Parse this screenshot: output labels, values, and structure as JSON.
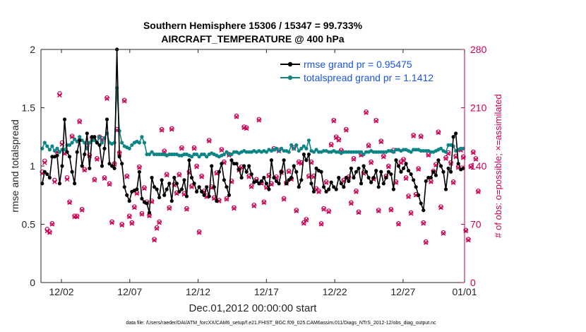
{
  "chart_data": {
    "type": "line",
    "title_line1": "Southern Hemisphere 15306 / 15347 = 99.733%",
    "title_line2": "AIRCRAFT_TEMPERATURE @ 400 hPa",
    "xlabel": "Dec.01,2012 00:00:00 start",
    "ylabel_left": "rmse and totalspread",
    "ylabel_right": "# of obs: o=possible; ×=assimilated",
    "footnote": "data file: /Users/raeder/DAI/ATM_forcXX/CAM6_setup/f.e21.FHIST_BGC.f09_025.CAM6assim.011/Diags_NTrS_2012-12/obs_diag_output.nc",
    "x_range": [
      0.5,
      31.5
    ],
    "x_ticks": [
      {
        "value": 2,
        "label": "12/02"
      },
      {
        "value": 7,
        "label": "12/07"
      },
      {
        "value": 12,
        "label": "12/12"
      },
      {
        "value": 17,
        "label": "12/17"
      },
      {
        "value": 22,
        "label": "12/22"
      },
      {
        "value": 27,
        "label": "12/27"
      },
      {
        "value": 32,
        "label": "01/01"
      }
    ],
    "y_left_range": [
      0,
      2
    ],
    "y_left_ticks": [
      "0",
      "0.5",
      "1",
      "1.5",
      "2"
    ],
    "y_right_range": [
      0,
      280
    ],
    "y_right_ticks": [
      "0",
      "70",
      "140",
      "210",
      "280"
    ],
    "colors": {
      "rmse": "#000000",
      "spread": "#0e8585",
      "obs": "#cc0055",
      "legend_text": "#1a55e0"
    },
    "legend": [
      {
        "label": "rmse grand pr = 0.95475",
        "series": "rmse"
      },
      {
        "label": "totalspread grand pr = 1.1412",
        "series": "spread"
      }
    ],
    "series": [
      {
        "name": "rmse",
        "values": [
          0.85,
          0.95,
          0.93,
          0.9,
          1.08,
          1.08,
          1.09,
          0.85,
          1.0,
          1.4,
          1.12,
          1.08,
          0.95,
          0.85,
          1.12,
          1.22,
          1.0,
          1.1,
          1.28,
          0.98,
          1.25,
          1.25,
          1.2,
          1.18,
          1.0,
          1.15,
          1.4,
          1.02,
          1.0,
          0.98,
          2.0,
          1.08,
          1.02,
          0.82,
          0.75,
          0.7,
          0.78,
          0.79,
          0.8,
          0.95,
          0.72,
          0.69,
          0.68,
          0.6,
          0.9,
          0.82,
          0.8,
          0.73,
          0.88,
          0.75,
          0.8,
          0.85,
          0.7,
          0.9,
          0.85,
          0.78,
          0.8,
          0.88,
          0.74,
          1.05,
          0.9,
          0.85,
          0.78,
          0.82,
          0.78,
          0.75,
          0.82,
          0.74,
          1.0,
          0.82,
          0.7,
          0.95,
          1.02,
          0.88,
          0.82,
          0.75,
          1.05,
          1.02,
          1.02,
          0.97,
          0.9,
          1.0,
          0.95,
          1.0,
          0.93,
          0.86,
          0.87,
          0.85,
          0.87,
          0.9,
          0.85,
          0.8,
          1.05,
          0.9,
          0.87,
          0.85,
          0.95,
          1.05,
          0.85,
          0.88,
          0.9,
          1.0,
          0.95,
          0.82,
          0.88,
          1.1,
          1.05,
          1.1,
          0.85,
          0.78,
          0.98,
          0.96,
          0.95,
          0.82,
          0.78,
          0.8,
          0.86,
          0.82,
          0.8,
          0.9,
          0.85,
          0.82,
          0.9,
          0.87,
          0.98,
          0.9,
          0.95,
          0.98,
          0.85,
          1.0,
          0.95,
          0.9,
          0.86,
          0.9,
          0.96,
          0.82,
          0.95,
          0.85,
          0.9,
          0.95,
          0.93,
          0.8,
          1.05,
          1.0,
          0.95,
          0.98,
          1.02,
          0.96,
          0.93,
          0.88,
          0.82,
          0.75,
          0.68,
          0.62,
          0.87,
          0.9,
          0.9,
          0.95,
          0.92,
          1.05,
          1.0,
          0.95,
          0.8,
          0.98,
          0.95,
          1.25,
          1.28,
          1.02,
          0.97,
          0.98
        ]
      },
      {
        "name": "spread",
        "values": [
          1.15,
          1.2,
          1.17,
          1.14,
          1.17,
          1.13,
          1.15,
          1.12,
          1.14,
          1.14,
          1.18,
          1.18,
          1.2,
          1.23,
          1.21,
          1.25,
          1.22,
          1.2,
          1.15,
          1.2,
          1.22,
          1.22,
          1.2,
          1.25,
          1.2,
          1.24,
          1.28,
          1.2,
          1.19,
          1.2,
          1.67,
          1.3,
          1.2,
          1.17,
          1.16,
          1.15,
          1.18,
          1.2,
          1.21,
          1.2,
          1.25,
          1.2,
          1.1,
          1.1,
          1.12,
          1.1,
          1.1,
          1.1,
          1.1,
          1.1,
          1.09,
          1.1,
          1.1,
          1.1,
          1.1,
          1.09,
          1.09,
          1.1,
          1.1,
          1.09,
          1.08,
          1.1,
          1.1,
          1.08,
          1.1,
          1.1,
          1.08,
          1.1,
          1.11,
          1.1,
          1.09,
          1.08,
          1.09,
          1.1,
          1.12,
          1.1,
          1.1,
          1.12,
          1.12,
          1.11,
          1.12,
          1.13,
          1.12,
          1.12,
          1.12,
          1.13,
          1.12,
          1.13,
          1.12,
          1.13,
          1.12,
          1.14,
          1.13,
          1.14,
          1.15,
          1.13,
          1.15,
          1.13,
          1.13,
          1.12,
          1.18,
          1.15,
          1.18,
          1.13,
          1.15,
          1.17,
          1.15,
          1.22,
          1.13,
          1.12,
          1.14,
          1.12,
          1.12,
          1.13,
          1.13,
          1.12,
          1.12,
          1.13,
          1.12,
          1.12,
          1.11,
          1.12,
          1.12,
          1.12,
          1.12,
          1.12,
          1.12,
          1.12,
          1.12,
          1.1,
          1.12,
          1.12,
          1.13,
          1.12,
          1.12,
          1.12,
          1.12,
          1.12,
          1.12,
          1.13,
          1.13,
          1.12,
          1.14,
          1.14,
          1.13,
          1.14,
          1.14,
          1.13,
          1.12,
          1.14,
          1.14,
          1.14,
          1.13,
          1.13,
          1.13,
          1.13,
          1.12,
          1.12,
          1.13,
          1.14,
          1.15,
          1.13,
          1.12,
          1.18,
          1.18,
          1.17,
          1.13,
          1.14,
          1.15,
          1.15
        ]
      },
      {
        "name": "obs_possible",
        "values": [
          133,
          146,
          64,
          61,
          71,
          123,
          158,
          227,
          168,
          156,
          126,
          97,
          176,
          80,
          80,
          194,
          88,
          136,
          164,
          153,
          174,
          124,
          149,
          175,
          173,
          126,
          222,
          119,
          73,
          143,
          184,
          156,
          70,
          219,
          128,
          80,
          72,
          91,
          108,
          139,
          83,
          114,
          97,
          81,
          98,
          52,
          66,
          73,
          184,
          158,
          130,
          90,
          185,
          118,
          108,
          130,
          162,
          107,
          89,
          133,
          116,
          162,
          140,
          61,
          128,
          110,
          104,
          171,
          115,
          102,
          132,
          99,
          160,
          145,
          101,
          154,
          122,
          90,
          200,
          136,
          139,
          187,
          186,
          128,
          116,
          93,
          124,
          196,
          120,
          97,
          115,
          129,
          119,
          161,
          127,
          159,
          133,
          101,
          120,
          134,
          125,
          162,
          87,
          145,
          144,
          72,
          76,
          128,
          145,
          128,
          113,
          110,
          71,
          89,
          121,
          86,
          166,
          195,
          175,
          172,
          159,
          123,
          184,
          127,
          96,
          149,
          110,
          85,
          154,
          132,
          205,
          165,
          145,
          125,
          195,
          87,
          170,
          152,
          128,
          140,
          88,
          159,
          121,
          71,
          145,
          148,
          126,
          104,
          84,
          177,
          106,
          137,
          176,
          72,
          49,
          154,
          122,
          134,
          142,
          181,
          91,
          60,
          150,
          156,
          144,
          121,
          152,
          139,
          160,
          151,
          63,
          52,
          140,
          157,
          149,
          110
        ]
      },
      {
        "name": "obs_assimilated",
        "values": [
          131,
          144,
          62,
          60,
          70,
          121,
          157,
          225,
          166,
          155,
          124,
          96,
          175,
          79,
          79,
          193,
          87,
          135,
          163,
          152,
          173,
          123,
          148,
          174,
          172,
          125,
          221,
          118,
          72,
          142,
          183,
          155,
          69,
          218,
          127,
          79,
          71,
          90,
          107,
          138,
          82,
          113,
          96,
          80,
          97,
          51,
          65,
          72,
          183,
          157,
          129,
          89,
          184,
          117,
          107,
          129,
          161,
          106,
          88,
          132,
          115,
          161,
          139,
          60,
          127,
          109,
          103,
          170,
          114,
          101,
          131,
          98,
          159,
          144,
          100,
          153,
          121,
          89,
          199,
          135,
          138,
          186,
          185,
          127,
          115,
          92,
          123,
          195,
          119,
          96,
          114,
          128,
          118,
          160,
          126,
          158,
          132,
          100,
          119,
          133,
          124,
          161,
          86,
          144,
          143,
          71,
          75,
          127,
          144,
          127,
          112,
          109,
          70,
          88,
          120,
          85,
          165,
          194,
          174,
          171,
          158,
          122,
          183,
          126,
          95,
          148,
          109,
          84,
          153,
          131,
          204,
          164,
          144,
          124,
          194,
          86,
          169,
          151,
          127,
          139,
          87,
          158,
          120,
          70,
          144,
          147,
          125,
          103,
          83,
          176,
          105,
          136,
          175,
          71,
          48,
          153,
          121,
          133,
          141,
          180,
          90,
          59,
          149,
          155,
          143,
          120,
          151,
          138,
          159,
          150,
          62,
          51,
          139,
          156,
          148,
          109
        ]
      }
    ]
  }
}
